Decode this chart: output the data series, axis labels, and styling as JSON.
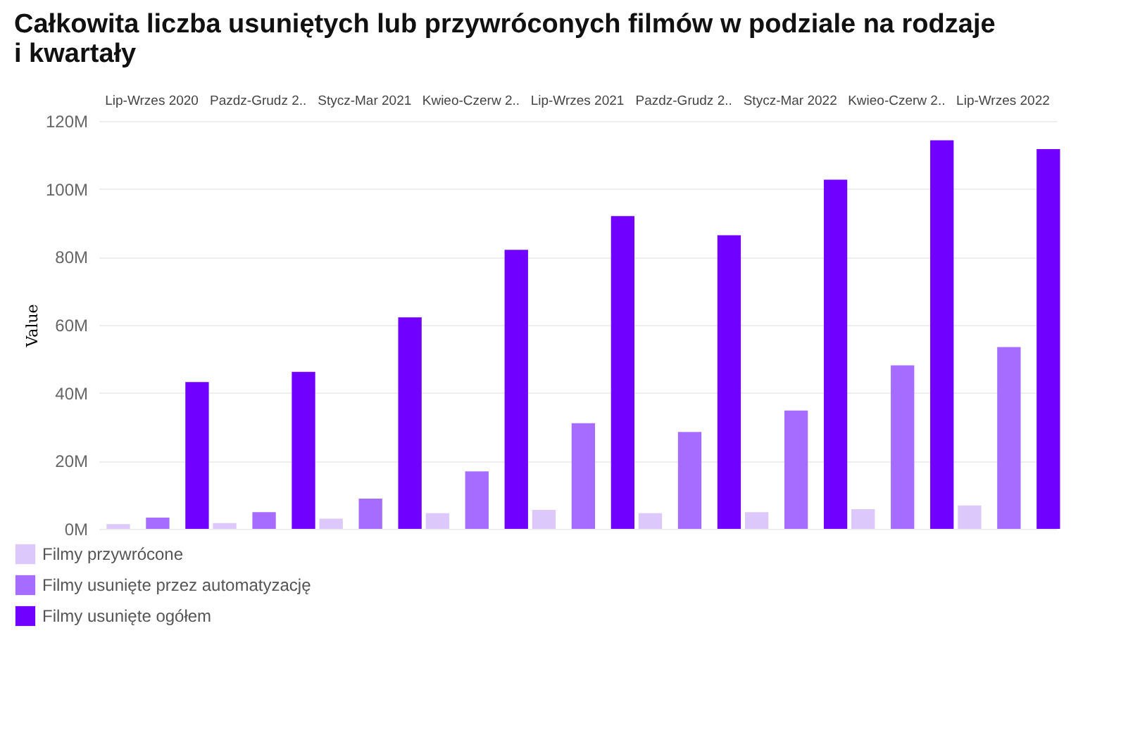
{
  "chart_data": {
    "type": "bar",
    "title": "Całkowita liczba usuniętych lub przywróconych filmów w podziale na rodzaje i kwartały",
    "ylabel": "Value",
    "categories": [
      "Lip-Wrzes 2020",
      "Pazdz-Grudz 2..",
      "Stycz-Mar 2021",
      "Kwieo-Czerw 2..",
      "Lip-Wrzes 2021",
      "Pazdz-Grudz 2..",
      "Stycz-Mar 2022",
      "Kwieo-Czerw 2..",
      "Lip-Wrzes 2022"
    ],
    "series": [
      {
        "name": "Filmy przywrócone",
        "color": "#dcc8fa",
        "values": [
          1400000,
          1700000,
          3000000,
          4600000,
          5600000,
          4600000,
          4900000,
          5800000,
          6900000
        ]
      },
      {
        "name": "Filmy usunięte przez automatyzację",
        "color": "#a66bff",
        "values": [
          3300000,
          4900000,
          8900000,
          16900000,
          31100000,
          28500000,
          34800000,
          48100000,
          53500000
        ]
      },
      {
        "name": "Filmy usunięte ogółem",
        "color": "#7000ff",
        "values": [
          43200000,
          46200000,
          62200000,
          82100000,
          92000000,
          86400000,
          102700000,
          114300000,
          111700000
        ]
      }
    ],
    "ylim": [
      0,
      120000000
    ],
    "yticks": [
      {
        "value": 0,
        "label": "0M"
      },
      {
        "value": 20000000,
        "label": "20M"
      },
      {
        "value": 40000000,
        "label": "40M"
      },
      {
        "value": 60000000,
        "label": "60M"
      },
      {
        "value": 80000000,
        "label": "80M"
      },
      {
        "value": 100000000,
        "label": "100M"
      },
      {
        "value": 120000000,
        "label": "120M"
      }
    ],
    "grid": "y",
    "legend": "bottom left"
  }
}
